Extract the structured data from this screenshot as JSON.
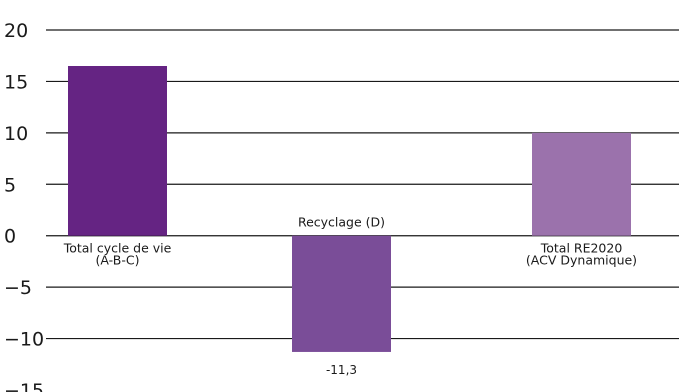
{
  "chart_data": {
    "type": "bar",
    "categories": [
      [
        "Total cycle de vie",
        "(A-B-C)"
      ],
      [
        "Recyclage (D)"
      ],
      [
        "Total RE2020",
        "(ACV Dynamique)"
      ]
    ],
    "values": [
      16.5,
      -11.3,
      10.0
    ],
    "data_labels": [
      "",
      "-11,3",
      ""
    ],
    "colors": [
      "#652483",
      "#7a4d98",
      "#9b72ac"
    ],
    "yticks": [
      20,
      15,
      10,
      5,
      0,
      -5,
      -10,
      -15
    ],
    "ytick_labels": [
      "20",
      "15",
      "10",
      "5",
      "0",
      "−5",
      "−10",
      "−15"
    ],
    "ylim": [
      -15,
      20
    ],
    "grid": true
  }
}
